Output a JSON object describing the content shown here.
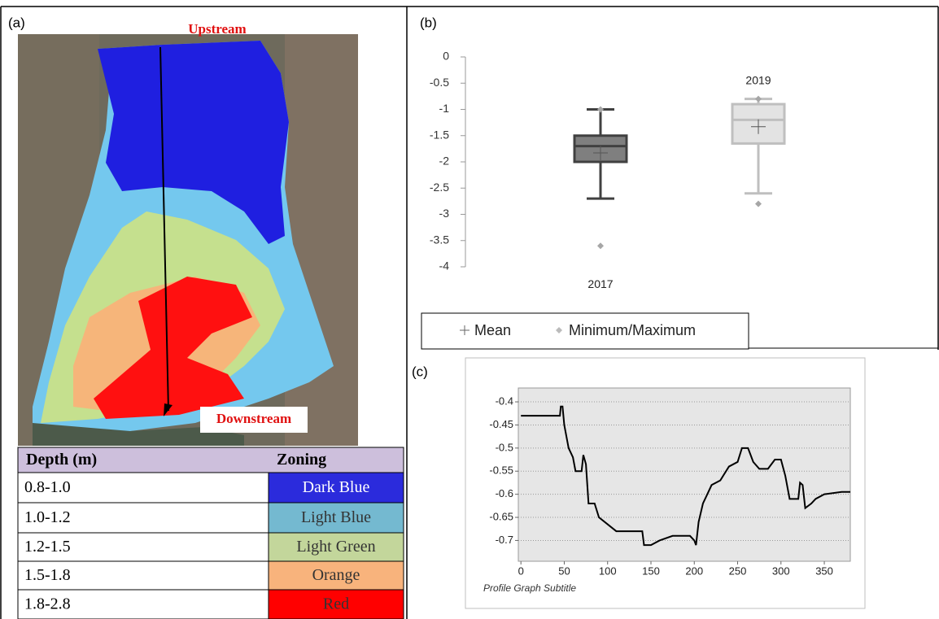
{
  "panel_labels": [
    "(a)",
    "(b)",
    "(c)"
  ],
  "map": {
    "upstream_label": "Upstream",
    "downstream_label": "Downstream"
  },
  "table": {
    "header": [
      "Depth (m)",
      "Zoning"
    ],
    "rows": [
      [
        "0.8-1.0",
        "Dark Blue"
      ],
      [
        "1.0-1.2",
        "Light Blue"
      ],
      [
        "1.2-1.5",
        "Light Green"
      ],
      [
        "1.5-1.8",
        "Orange"
      ],
      [
        "1.8-2.8",
        "Red"
      ]
    ],
    "row_colors": [
      "#2b2bdc",
      "#74b9d0",
      "#c3d69b",
      "#f8b37c",
      "#ff0000"
    ]
  },
  "chart_data": [
    {
      "type": "box",
      "ylim": [
        -4,
        0
      ],
      "yticks": [
        0,
        -0.5,
        -1,
        -1.5,
        -2,
        -2.5,
        -3,
        -3.5,
        -4
      ],
      "legend": [
        "Mean",
        "Minimum/Maximum"
      ],
      "series": [
        {
          "name": "2017",
          "color": "#7f7f7f",
          "edge": "#404040",
          "whisker_low": -2.7,
          "q1": -2.0,
          "median": -1.7,
          "q3": -1.5,
          "whisker_high": -1.0,
          "mean": -1.83,
          "min": -3.6,
          "max": -1.0
        },
        {
          "name": "2019",
          "color": "#e3e3e3",
          "edge": "#bfbfbf",
          "whisker_low": -2.6,
          "q1": -1.65,
          "median": -1.2,
          "q3": -0.9,
          "whisker_high": -0.8,
          "mean": -1.33,
          "min": -2.8,
          "max": -0.8
        }
      ]
    },
    {
      "type": "line",
      "subtitle": "Profile Graph Subtitle",
      "color": "#000000",
      "grid": true,
      "xlim": [
        -3,
        380
      ],
      "ylim": [
        -0.745,
        -0.37
      ],
      "xticks": [
        0,
        50,
        100,
        150,
        200,
        250,
        300,
        350
      ],
      "yticks": [
        -0.4,
        -0.45,
        -0.5,
        -0.55,
        -0.6,
        -0.65,
        -0.7
      ],
      "x": [
        0,
        45,
        46,
        48,
        50,
        55,
        60,
        63,
        70,
        72,
        75,
        78,
        85,
        90,
        110,
        140,
        142,
        150,
        160,
        175,
        195,
        200,
        202,
        205,
        210,
        215,
        220,
        230,
        240,
        250,
        255,
        262,
        268,
        275,
        285,
        293,
        300,
        305,
        310,
        320,
        322,
        325,
        328,
        335,
        340,
        350,
        370,
        380
      ],
      "values": [
        -0.43,
        -0.43,
        -0.41,
        -0.41,
        -0.45,
        -0.5,
        -0.52,
        -0.55,
        -0.55,
        -0.515,
        -0.535,
        -0.62,
        -0.62,
        -0.65,
        -0.68,
        -0.68,
        -0.71,
        -0.71,
        -0.7,
        -0.69,
        -0.69,
        -0.7,
        -0.71,
        -0.66,
        -0.62,
        -0.6,
        -0.58,
        -0.57,
        -0.54,
        -0.53,
        -0.5,
        -0.5,
        -0.53,
        -0.545,
        -0.545,
        -0.525,
        -0.525,
        -0.56,
        -0.61,
        -0.61,
        -0.575,
        -0.58,
        -0.63,
        -0.62,
        -0.61,
        -0.6,
        -0.595,
        -0.595
      ]
    }
  ]
}
